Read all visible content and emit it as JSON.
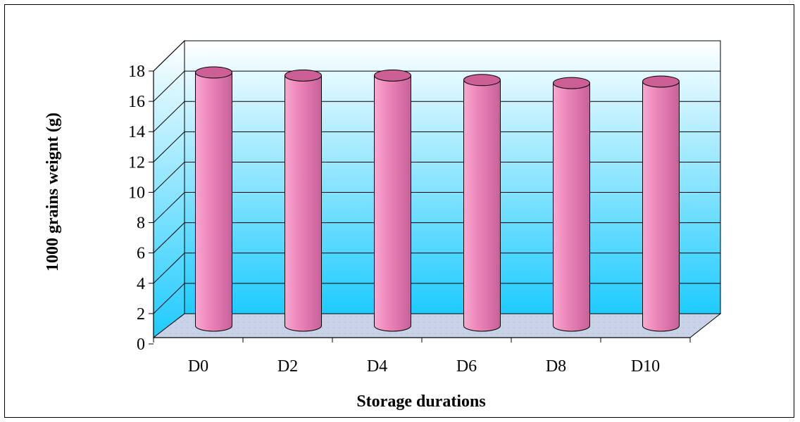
{
  "chart_data": {
    "type": "bar",
    "title": "",
    "xlabel": "Storage durations",
    "ylabel": "1000 grains weignt (g)",
    "categories": [
      "D0",
      "D2",
      "D4",
      "D6",
      "D8",
      "D10"
    ],
    "values": [
      16.7,
      16.5,
      16.5,
      16.2,
      16.0,
      16.1
    ],
    "ylim": [
      0,
      18
    ],
    "yticks": [
      "0",
      "2",
      "4",
      "6",
      "8",
      "10",
      "12",
      "14",
      "16",
      "18"
    ],
    "grid": true,
    "legend": "none",
    "style": "3d-cylinder"
  },
  "colors": {
    "bar_fill": "#ee88bb",
    "bar_top": "#cc5f96",
    "wall_top": "#ffffff",
    "wall_bottom": "#1ecbff",
    "floor": "#c9d3e8"
  }
}
